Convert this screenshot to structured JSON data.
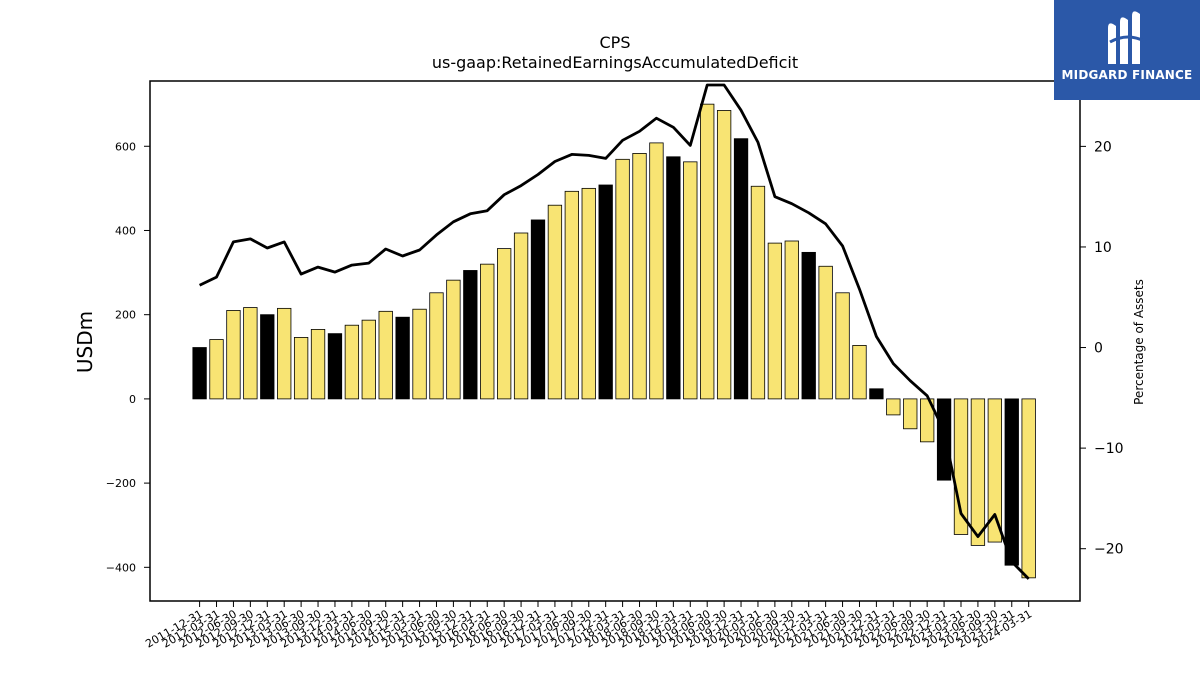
{
  "brand": {
    "name": "MIDGARD FINANCE"
  },
  "chart_data": {
    "type": "bar",
    "title": "CPS",
    "subtitle": "us-gaap:RetainedEarningsAccumulatedDeficit",
    "ylabel": "USDm",
    "y2label": "Percentage of Assets",
    "ylim": [
      -480,
      755
    ],
    "y2lim": [
      -25.2,
      26.5
    ],
    "yticks": [
      -400,
      -200,
      0,
      200,
      400,
      600
    ],
    "y2ticks": [
      -20,
      -10,
      0,
      10,
      20
    ],
    "ytick_labels": [
      "−400",
      "−200",
      "0",
      "200",
      "400",
      "600"
    ],
    "y2tick_labels": [
      "−20",
      "−10",
      "0",
      "10",
      "20"
    ],
    "colors": {
      "annual": "#000000",
      "quarter": "#f8e473",
      "line": "#000000"
    },
    "categories": [
      "2011-12-31",
      "2012-03-31",
      "2012-06-30",
      "2012-09-30",
      "2012-12-31",
      "2013-03-31",
      "2013-06-30",
      "2013-09-30",
      "2013-12-31",
      "2014-03-31",
      "2014-06-30",
      "2014-09-30",
      "2014-12-31",
      "2015-03-31",
      "2015-06-30",
      "2015-09-30",
      "2015-12-31",
      "2016-03-31",
      "2016-06-30",
      "2016-09-30",
      "2016-12-31",
      "2017-03-31",
      "2017-06-30",
      "2017-09-30",
      "2017-12-31",
      "2018-03-31",
      "2018-06-30",
      "2018-09-30",
      "2018-12-31",
      "2019-03-31",
      "2019-06-30",
      "2019-09-30",
      "2019-12-31",
      "2020-03-31",
      "2020-06-30",
      "2020-09-30",
      "2020-12-31",
      "2021-03-31",
      "2021-06-30",
      "2021-09-30",
      "2021-12-31",
      "2022-03-31",
      "2022-06-30",
      "2022-09-30",
      "2022-12-31",
      "2023-03-31",
      "2023-06-30",
      "2023-09-30",
      "2023-12-31",
      "2024-03-31"
    ],
    "tick_labels": [
      "2011-12-31",
      "2012-03-31",
      "2012-06-30",
      "2012-09-30",
      "2012-12-31",
      "2013-03-31",
      "2013-06-30",
      "2013-09-30",
      "2013-12-31",
      "2014-03-31",
      "2014-06-30",
      "2014-09-30",
      "2014-12-31",
      "2015-03-31",
      "2015-06-30",
      "2015-09-30",
      "2015-12-31",
      "2016-03-31",
      "2016-06-30",
      "2016-09-30",
      "2016-12-31",
      "2017-03-31",
      "2017-06-30",
      "2017-09-30",
      "2017-12-31",
      "2018-03-31",
      "2018-06-30",
      "2018-09-30",
      "2018-12-31",
      "2019-03-31",
      "2019-06-30",
      "2019-09-30",
      "2019-12-31",
      "2020-03-31",
      "2020-06-30",
      "2020-09-30",
      "2020-12-31",
      "2021-03-31",
      "2021-06-30",
      "2021-09-30",
      "2021-12-31",
      "2022-03-31",
      "2022-06-30",
      "2022-09-30",
      "2022-12-31",
      "2023-03-31",
      "2023-06-30",
      "2023-09-30",
      "2023-12-31",
      "2024-03-31"
    ],
    "series": [
      {
        "type": "bar",
        "values": [
          122,
          141,
          210,
          217,
          200,
          215,
          146,
          165,
          155,
          175,
          187,
          208,
          194,
          213,
          252,
          282,
          305,
          320,
          357,
          394,
          425,
          460,
          493,
          500,
          508,
          569,
          583,
          608,
          575,
          563,
          700,
          685,
          618,
          505,
          370,
          375,
          348,
          315,
          252,
          127,
          24,
          -38,
          -71,
          -102,
          -193,
          -322,
          -348,
          -340,
          -395,
          -425
        ],
        "is_annual": [
          true,
          false,
          false,
          false,
          true,
          false,
          false,
          false,
          true,
          false,
          false,
          false,
          true,
          false,
          false,
          false,
          true,
          false,
          false,
          false,
          true,
          false,
          false,
          false,
          true,
          false,
          false,
          false,
          true,
          false,
          false,
          false,
          true,
          false,
          false,
          false,
          true,
          false,
          false,
          false,
          true,
          false,
          false,
          false,
          true,
          false,
          false,
          false,
          true,
          false
        ]
      },
      {
        "type": "line",
        "axis": "right",
        "values": [
          6.2,
          7.0,
          10.5,
          10.8,
          9.9,
          10.5,
          7.3,
          8.0,
          7.5,
          8.2,
          8.4,
          9.8,
          9.1,
          9.7,
          11.2,
          12.5,
          13.3,
          13.6,
          15.2,
          16.1,
          17.2,
          18.5,
          19.2,
          19.1,
          18.8,
          20.6,
          21.5,
          22.8,
          21.9,
          20.1,
          26.1,
          26.1,
          23.6,
          20.4,
          15.0,
          14.3,
          13.4,
          12.3,
          10.1,
          5.8,
          1.1,
          -1.6,
          -3.3,
          -4.8,
          -8.3,
          -16.5,
          -18.8,
          -16.6,
          -21.3,
          -23.0
        ]
      }
    ]
  }
}
